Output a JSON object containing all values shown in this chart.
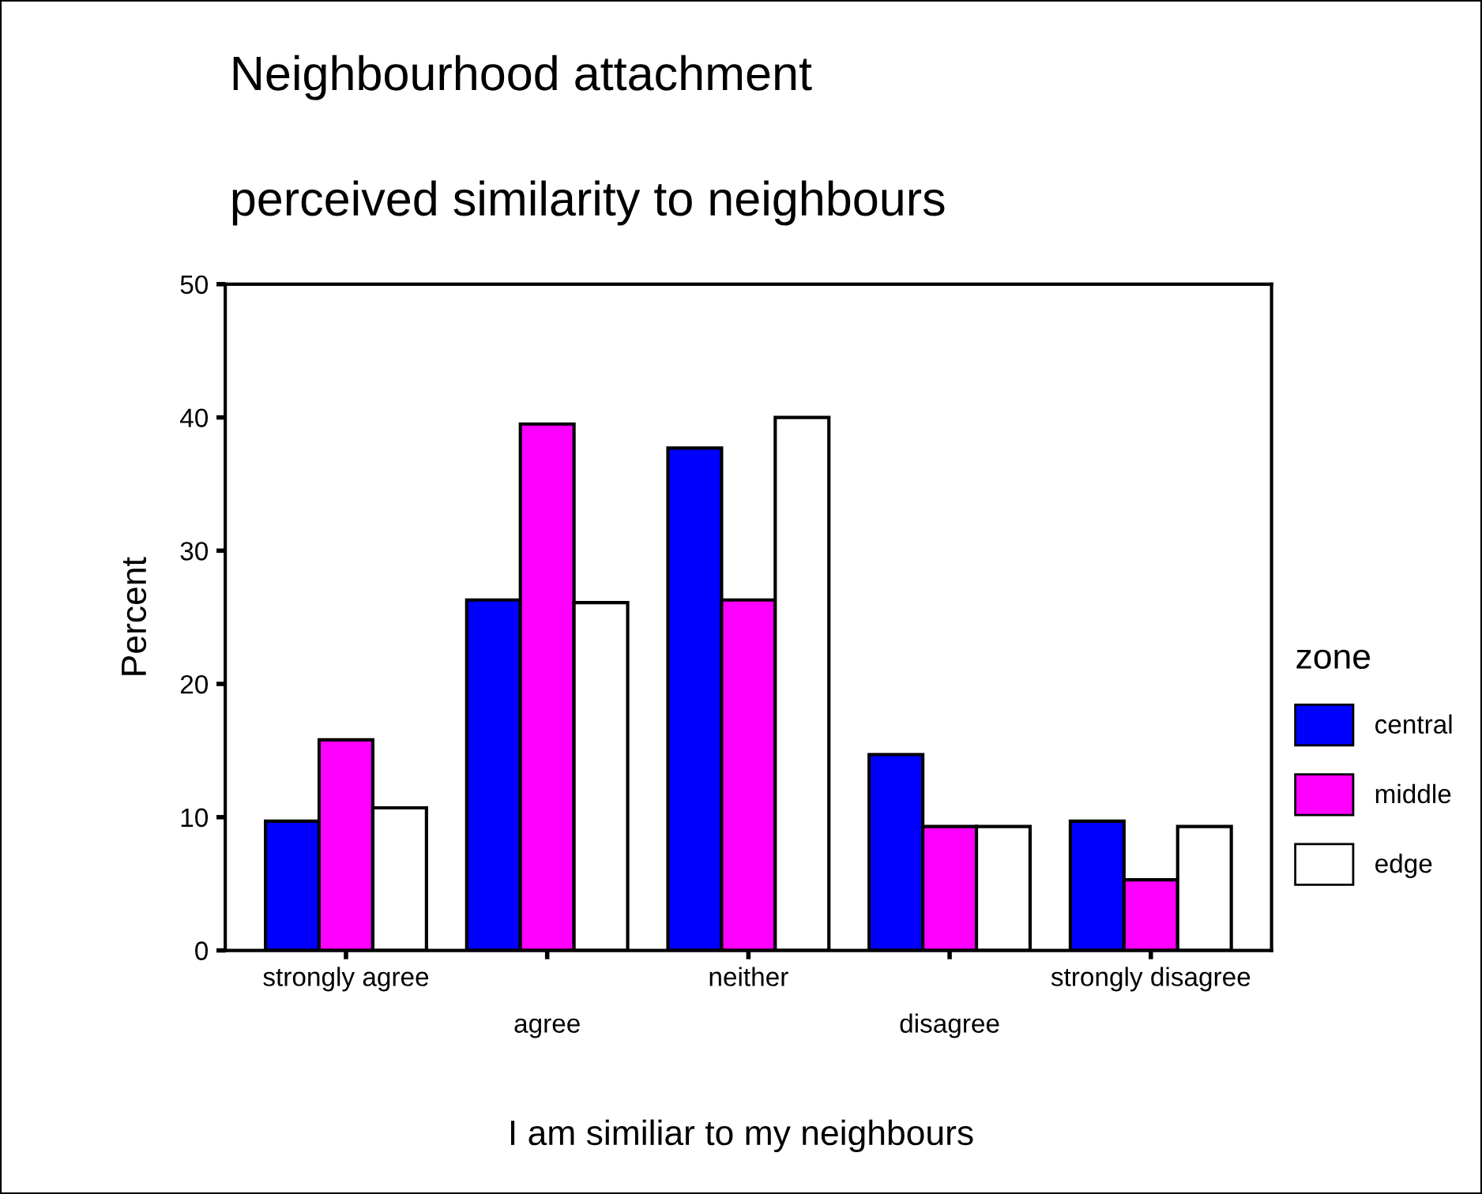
{
  "chart_data": {
    "type": "bar",
    "title": "Neighbourhood attachment",
    "subtitle": "perceived similarity to neighbours",
    "xlabel": "I am similiar to my neighbours",
    "ylabel": "Percent",
    "legend_title": "zone",
    "categories": [
      "strongly agree",
      "agree",
      "neither",
      "disagree",
      "strongly disagree"
    ],
    "series": [
      {
        "name": "central",
        "color": "#0000ff",
        "values": [
          9.7,
          26.3,
          37.7,
          14.7,
          9.7
        ]
      },
      {
        "name": "middle",
        "color": "#ff00ff",
        "values": [
          15.8,
          39.5,
          26.3,
          9.3,
          5.3
        ]
      },
      {
        "name": "edge",
        "color": "#ffffff",
        "values": [
          10.7,
          26.1,
          40.0,
          9.3,
          9.3
        ]
      }
    ],
    "ylim": [
      0,
      50
    ],
    "yticks": [
      0,
      10,
      20,
      30,
      40,
      50
    ],
    "grid": false,
    "legend": "right"
  }
}
